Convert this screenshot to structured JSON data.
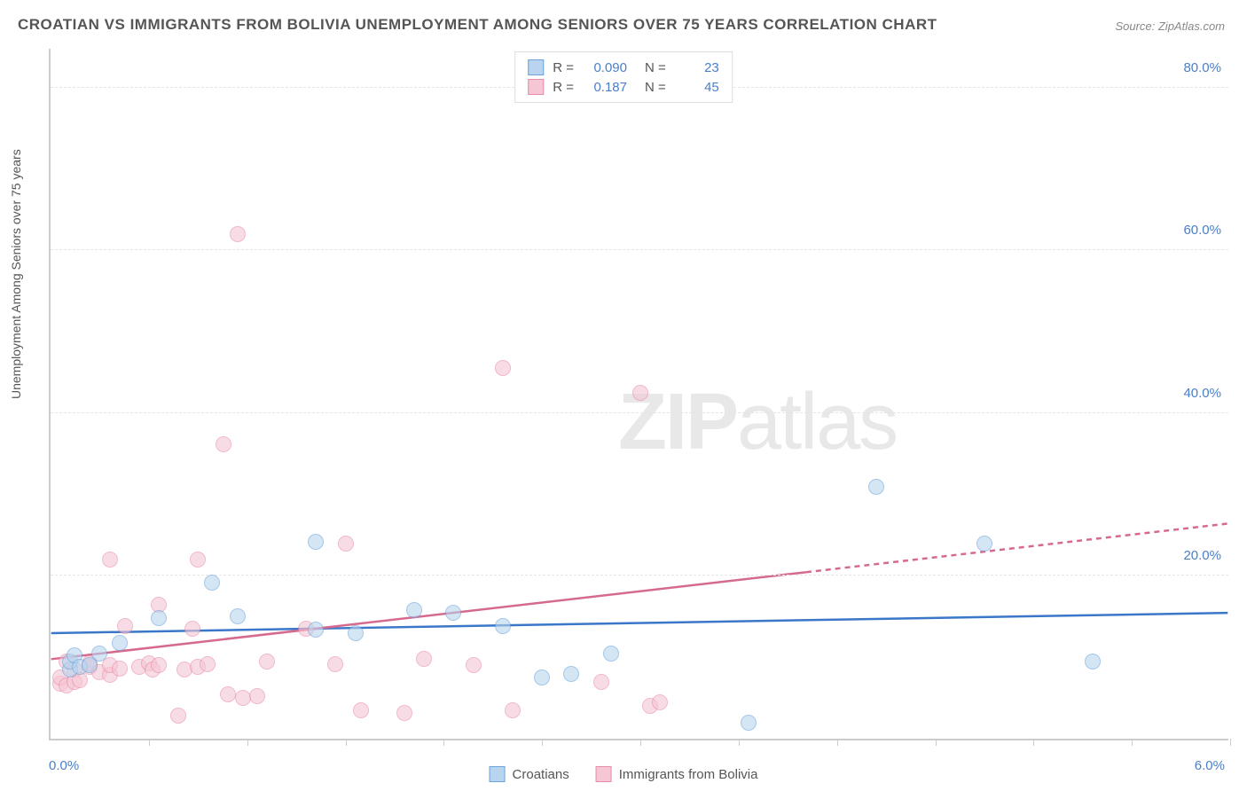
{
  "title": "CROATIAN VS IMMIGRANTS FROM BOLIVIA UNEMPLOYMENT AMONG SENIORS OVER 75 YEARS CORRELATION CHART",
  "source": "Source: ZipAtlas.com",
  "ylabel": "Unemployment Among Seniors over 75 years",
  "watermark_bold": "ZIP",
  "watermark_light": "atlas",
  "chart": {
    "type": "scatter",
    "xlim": [
      0.0,
      6.0
    ],
    "ylim": [
      0.0,
      85.0
    ],
    "x_tick_positions": [
      0.5,
      1.0,
      1.5,
      2.0,
      2.5,
      3.0,
      3.5,
      4.0,
      4.5,
      5.0,
      5.5,
      6.0
    ],
    "y_gridlines": [
      20.0,
      40.0,
      60.0,
      80.0
    ],
    "y_tick_labels": [
      "20.0%",
      "40.0%",
      "60.0%",
      "80.0%"
    ],
    "x_left_label": "0.0%",
    "x_right_label": "6.0%",
    "background_color": "#ffffff",
    "grid_color": "#e5e5e5",
    "axis_color": "#cccccc",
    "tick_label_color": "#4a7fc8",
    "title_color": "#555555",
    "title_fontsize": 17,
    "label_fontsize": 14,
    "tick_fontsize": 15
  },
  "series": {
    "croatians": {
      "label": "Croatians",
      "fill_color": "#b8d4ee",
      "stroke_color": "#6ba3dd",
      "fill_opacity": 0.6,
      "line_color": "#3a77c9",
      "marker_radius": 9,
      "R": "0.090",
      "N": "23",
      "trend": {
        "y_at_x0": 13.0,
        "y_at_x6": 15.5,
        "dash_from_x": null
      },
      "points": [
        {
          "x": 0.1,
          "y": 8.5
        },
        {
          "x": 0.1,
          "y": 9.5
        },
        {
          "x": 0.12,
          "y": 10.2
        },
        {
          "x": 0.15,
          "y": 8.8
        },
        {
          "x": 0.2,
          "y": 9.0
        },
        {
          "x": 0.25,
          "y": 10.5
        },
        {
          "x": 0.35,
          "y": 11.8
        },
        {
          "x": 0.55,
          "y": 14.8
        },
        {
          "x": 0.82,
          "y": 19.2
        },
        {
          "x": 0.95,
          "y": 15.0
        },
        {
          "x": 1.35,
          "y": 24.2
        },
        {
          "x": 1.35,
          "y": 13.4
        },
        {
          "x": 1.55,
          "y": 13.0
        },
        {
          "x": 1.85,
          "y": 15.8
        },
        {
          "x": 2.05,
          "y": 15.5
        },
        {
          "x": 2.3,
          "y": 13.8
        },
        {
          "x": 2.5,
          "y": 7.5
        },
        {
          "x": 2.65,
          "y": 8.0
        },
        {
          "x": 2.85,
          "y": 10.5
        },
        {
          "x": 3.55,
          "y": 2.0
        },
        {
          "x": 4.2,
          "y": 31.0
        },
        {
          "x": 4.75,
          "y": 24.0
        },
        {
          "x": 5.3,
          "y": 9.5
        }
      ]
    },
    "bolivia": {
      "label": "Immigrants from Bolivia",
      "fill_color": "#f5c6d4",
      "stroke_color": "#e88ba8",
      "fill_opacity": 0.6,
      "line_color": "#d66a8e",
      "marker_radius": 9,
      "R": "0.187",
      "N": "45",
      "trend": {
        "y_at_x0": 9.8,
        "y_at_x6": 26.5,
        "dash_from_x": 3.85
      },
      "points": [
        {
          "x": 0.05,
          "y": 6.8
        },
        {
          "x": 0.05,
          "y": 7.5
        },
        {
          "x": 0.08,
          "y": 6.5
        },
        {
          "x": 0.08,
          "y": 9.5
        },
        {
          "x": 0.12,
          "y": 7.0
        },
        {
          "x": 0.12,
          "y": 8.5
        },
        {
          "x": 0.15,
          "y": 7.2
        },
        {
          "x": 0.2,
          "y": 8.8
        },
        {
          "x": 0.2,
          "y": 9.3
        },
        {
          "x": 0.25,
          "y": 8.2
        },
        {
          "x": 0.3,
          "y": 7.8
        },
        {
          "x": 0.3,
          "y": 9.0
        },
        {
          "x": 0.3,
          "y": 22.0
        },
        {
          "x": 0.35,
          "y": 8.6
        },
        {
          "x": 0.38,
          "y": 13.8
        },
        {
          "x": 0.45,
          "y": 8.8
        },
        {
          "x": 0.5,
          "y": 9.3
        },
        {
          "x": 0.52,
          "y": 8.5
        },
        {
          "x": 0.55,
          "y": 9.0
        },
        {
          "x": 0.55,
          "y": 16.5
        },
        {
          "x": 0.65,
          "y": 2.8
        },
        {
          "x": 0.68,
          "y": 8.5
        },
        {
          "x": 0.72,
          "y": 13.5
        },
        {
          "x": 0.75,
          "y": 8.8
        },
        {
          "x": 0.75,
          "y": 22.0
        },
        {
          "x": 0.8,
          "y": 9.2
        },
        {
          "x": 0.88,
          "y": 36.2
        },
        {
          "x": 0.9,
          "y": 5.5
        },
        {
          "x": 0.95,
          "y": 62.0
        },
        {
          "x": 0.98,
          "y": 5.0
        },
        {
          "x": 1.05,
          "y": 5.2
        },
        {
          "x": 1.1,
          "y": 9.5
        },
        {
          "x": 1.3,
          "y": 13.5
        },
        {
          "x": 1.45,
          "y": 9.2
        },
        {
          "x": 1.5,
          "y": 24.0
        },
        {
          "x": 1.58,
          "y": 3.5
        },
        {
          "x": 1.8,
          "y": 3.2
        },
        {
          "x": 1.9,
          "y": 9.8
        },
        {
          "x": 2.15,
          "y": 9.0
        },
        {
          "x": 2.3,
          "y": 45.5
        },
        {
          "x": 2.35,
          "y": 3.5
        },
        {
          "x": 2.8,
          "y": 7.0
        },
        {
          "x": 3.0,
          "y": 42.5
        },
        {
          "x": 3.05,
          "y": 4.0
        },
        {
          "x": 3.1,
          "y": 4.5
        }
      ]
    }
  }
}
